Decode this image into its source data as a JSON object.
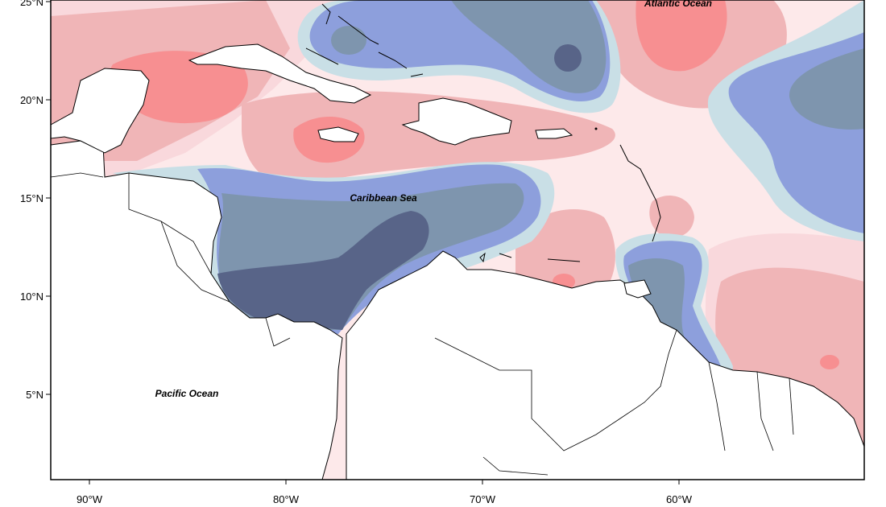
{
  "map": {
    "y_ticks": [
      "25°N",
      "20°N",
      "15°N",
      "10°N",
      "5°N"
    ],
    "x_ticks": [
      "90°W",
      "80°W",
      "70°W",
      "60°W"
    ],
    "labels": {
      "atlantic": "Atlantic Ocean",
      "caribbean": "Caribbean Sea",
      "pacific": "Pacific Ocean"
    },
    "colors": {
      "dark_red": "#f78f91",
      "mid_red": "#f0b5b7",
      "light_pink": "#f9d8dc",
      "very_light": "#fde9ea",
      "pale_blue": "#c9dfe6",
      "periwinkle": "#8d9fdc",
      "slate_blue": "#7e95ae",
      "dark_navy": "#586488"
    }
  }
}
